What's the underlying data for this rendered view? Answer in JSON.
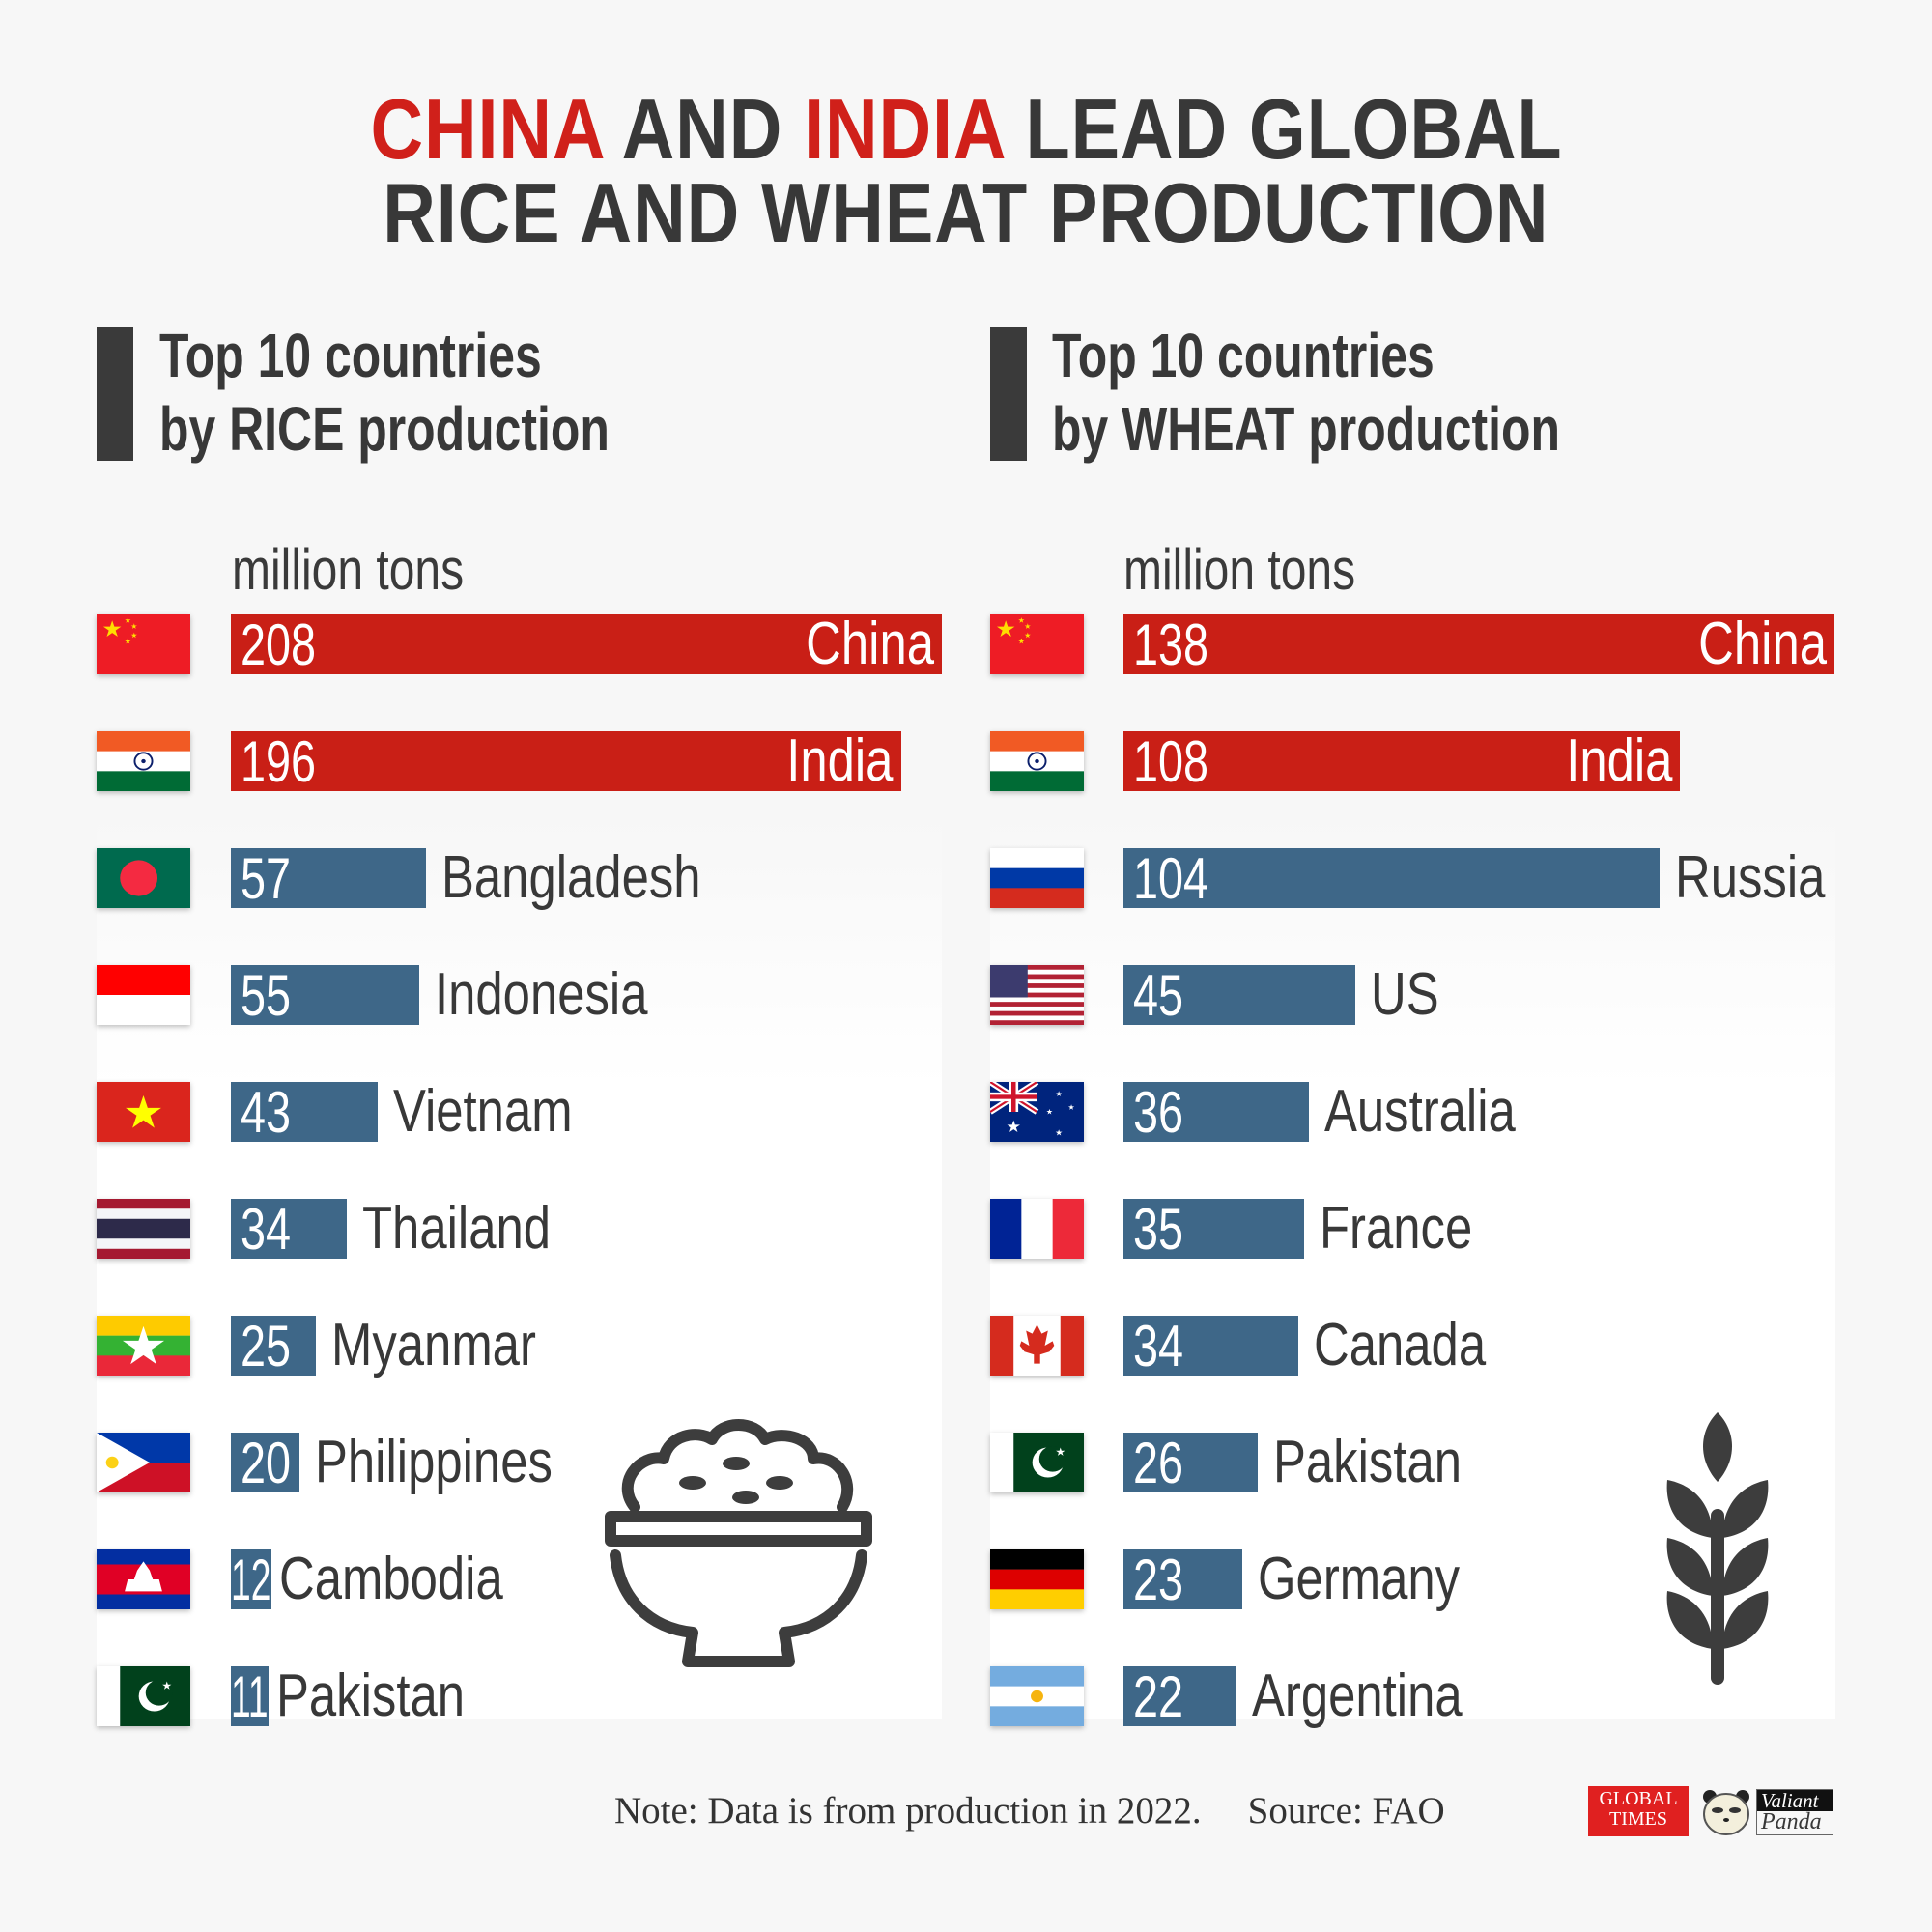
{
  "title": {
    "line1": [
      {
        "text": "CHINA",
        "highlight": true
      },
      {
        "text": " AND ",
        "highlight": false
      },
      {
        "text": "INDIA",
        "highlight": true
      },
      {
        "text": " LEAD GLOBAL",
        "highlight": false
      }
    ],
    "line2": "RICE AND WHEAT PRODUCTION"
  },
  "colors": {
    "highlight": "#d0201a",
    "bar_top": "#c91f16",
    "bar_other": "#3e6788",
    "text": "#383838"
  },
  "footer": {
    "note": "Note: Data is from production in 2022.",
    "source": "Source: FAO"
  },
  "logos": {
    "global_times": "GLOBAL TIMES",
    "valiant_panda": [
      "Valiant",
      "Panda"
    ]
  },
  "chart_data": [
    {
      "type": "bar",
      "orientation": "horizontal",
      "title": [
        "Top 10 countries",
        "by RICE production"
      ],
      "unit": "million tons",
      "icon": "rice-bowl-icon",
      "categories": [
        "China",
        "India",
        "Bangladesh",
        "Indonesia",
        "Vietnam",
        "Thailand",
        "Myanmar",
        "Philippines",
        "Cambodia",
        "Pakistan"
      ],
      "values": [
        208,
        196,
        57,
        55,
        43,
        34,
        25,
        20,
        12,
        11
      ],
      "highlight": [
        true,
        true,
        false,
        false,
        false,
        false,
        false,
        false,
        false,
        false
      ],
      "xlim": [
        0,
        208
      ]
    },
    {
      "type": "bar",
      "orientation": "horizontal",
      "title": [
        "Top 10 countries",
        "by WHEAT production"
      ],
      "unit": "million tons",
      "icon": "wheat-icon",
      "categories": [
        "China",
        "India",
        "Russia",
        "US",
        "Australia",
        "France",
        "Canada",
        "Pakistan",
        "Germany",
        "Argentina"
      ],
      "values": [
        138,
        108,
        104,
        45,
        36,
        35,
        34,
        26,
        23,
        22
      ],
      "highlight": [
        true,
        true,
        false,
        false,
        false,
        false,
        false,
        false,
        false,
        false
      ],
      "xlim": [
        0,
        138
      ]
    }
  ]
}
